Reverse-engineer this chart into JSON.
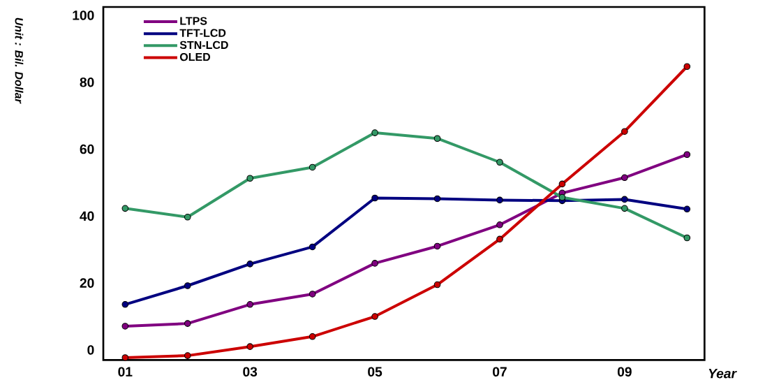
{
  "chart_data": {
    "type": "line",
    "xlabel": "Year",
    "ylabel": "Unit : Bil. Dollar",
    "categories": [
      "01",
      null,
      "03",
      null,
      "05",
      null,
      "07",
      null,
      "09",
      null
    ],
    "ylim": [
      -3,
      102.5
    ],
    "yticks": [
      0,
      20,
      40,
      60,
      80,
      100
    ],
    "legend": "top left",
    "marker": "circle",
    "line_style": "solid",
    "grid": false,
    "series": [
      {
        "name": "LTPS",
        "color": "#800080",
        "values": [
          7.1,
          7.9,
          13.6,
          16.7,
          25.9,
          31.0,
          37.4,
          46.9,
          51.5,
          58.4
        ]
      },
      {
        "name": "TFT-LCD",
        "color": "#000080",
        "values": [
          13.6,
          19.2,
          25.7,
          30.8,
          45.4,
          45.2,
          44.8,
          44.6,
          45.0,
          42.1
        ]
      },
      {
        "name": "STN-LCD",
        "color": "#339966",
        "values": [
          42.3,
          39.7,
          51.3,
          54.6,
          64.9,
          63.2,
          56.1,
          45.6,
          42.3,
          33.5
        ]
      },
      {
        "name": "OLED",
        "color": "#cc0000",
        "values": [
          -2.3,
          -1.7,
          1.0,
          4.0,
          10.0,
          19.5,
          33.1,
          49.6,
          65.3,
          84.7
        ]
      }
    ]
  }
}
